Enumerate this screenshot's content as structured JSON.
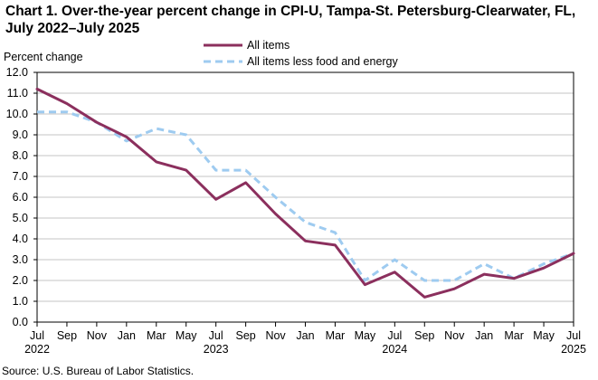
{
  "chart_data": {
    "type": "line",
    "title": "Chart 1. Over-the-year percent change in CPI-U, Tampa-St. Petersburg-Clearwater, FL, July 2022–July 2025",
    "ylabel": "Percent change",
    "xlabel": "",
    "ylim": [
      0,
      12
    ],
    "ytick_step": 1,
    "y_tick_labels": [
      "0.0",
      "1.0",
      "2.0",
      "3.0",
      "4.0",
      "5.0",
      "6.0",
      "7.0",
      "8.0",
      "9.0",
      "10.0",
      "11.0",
      "12.0"
    ],
    "x_tick_labels": [
      "Jul",
      "Sep",
      "Nov",
      "Jan",
      "Mar",
      "May",
      "Jul",
      "Sep",
      "Nov",
      "Jan",
      "Mar",
      "May",
      "Jul",
      "Sep",
      "Nov",
      "Jan",
      "Mar",
      "May",
      "Jul"
    ],
    "x_year_labels": [
      {
        "index": 0,
        "label": "2022"
      },
      {
        "index": 6,
        "label": "2023"
      },
      {
        "index": 12,
        "label": "2024"
      },
      {
        "index": 18,
        "label": "2025"
      }
    ],
    "grid": true,
    "legend_position": "top-center",
    "series": [
      {
        "name": "All items",
        "color": "#8b2f5d",
        "style": "solid",
        "values": [
          11.2,
          10.5,
          9.6,
          8.9,
          7.7,
          7.3,
          5.9,
          6.7,
          5.2,
          3.9,
          3.7,
          1.8,
          2.4,
          1.2,
          1.6,
          2.3,
          2.1,
          2.6,
          3.3
        ]
      },
      {
        "name": "All items less food and energy",
        "color": "#9ecbf0",
        "style": "dashed",
        "values": [
          10.1,
          10.1,
          9.6,
          8.7,
          9.3,
          9.0,
          7.3,
          7.3,
          6.0,
          4.8,
          4.3,
          2.0,
          3.0,
          2.0,
          2.0,
          2.8,
          2.1,
          2.8,
          3.3
        ]
      }
    ],
    "source": "Source: U.S. Bureau of Labor Statistics."
  }
}
